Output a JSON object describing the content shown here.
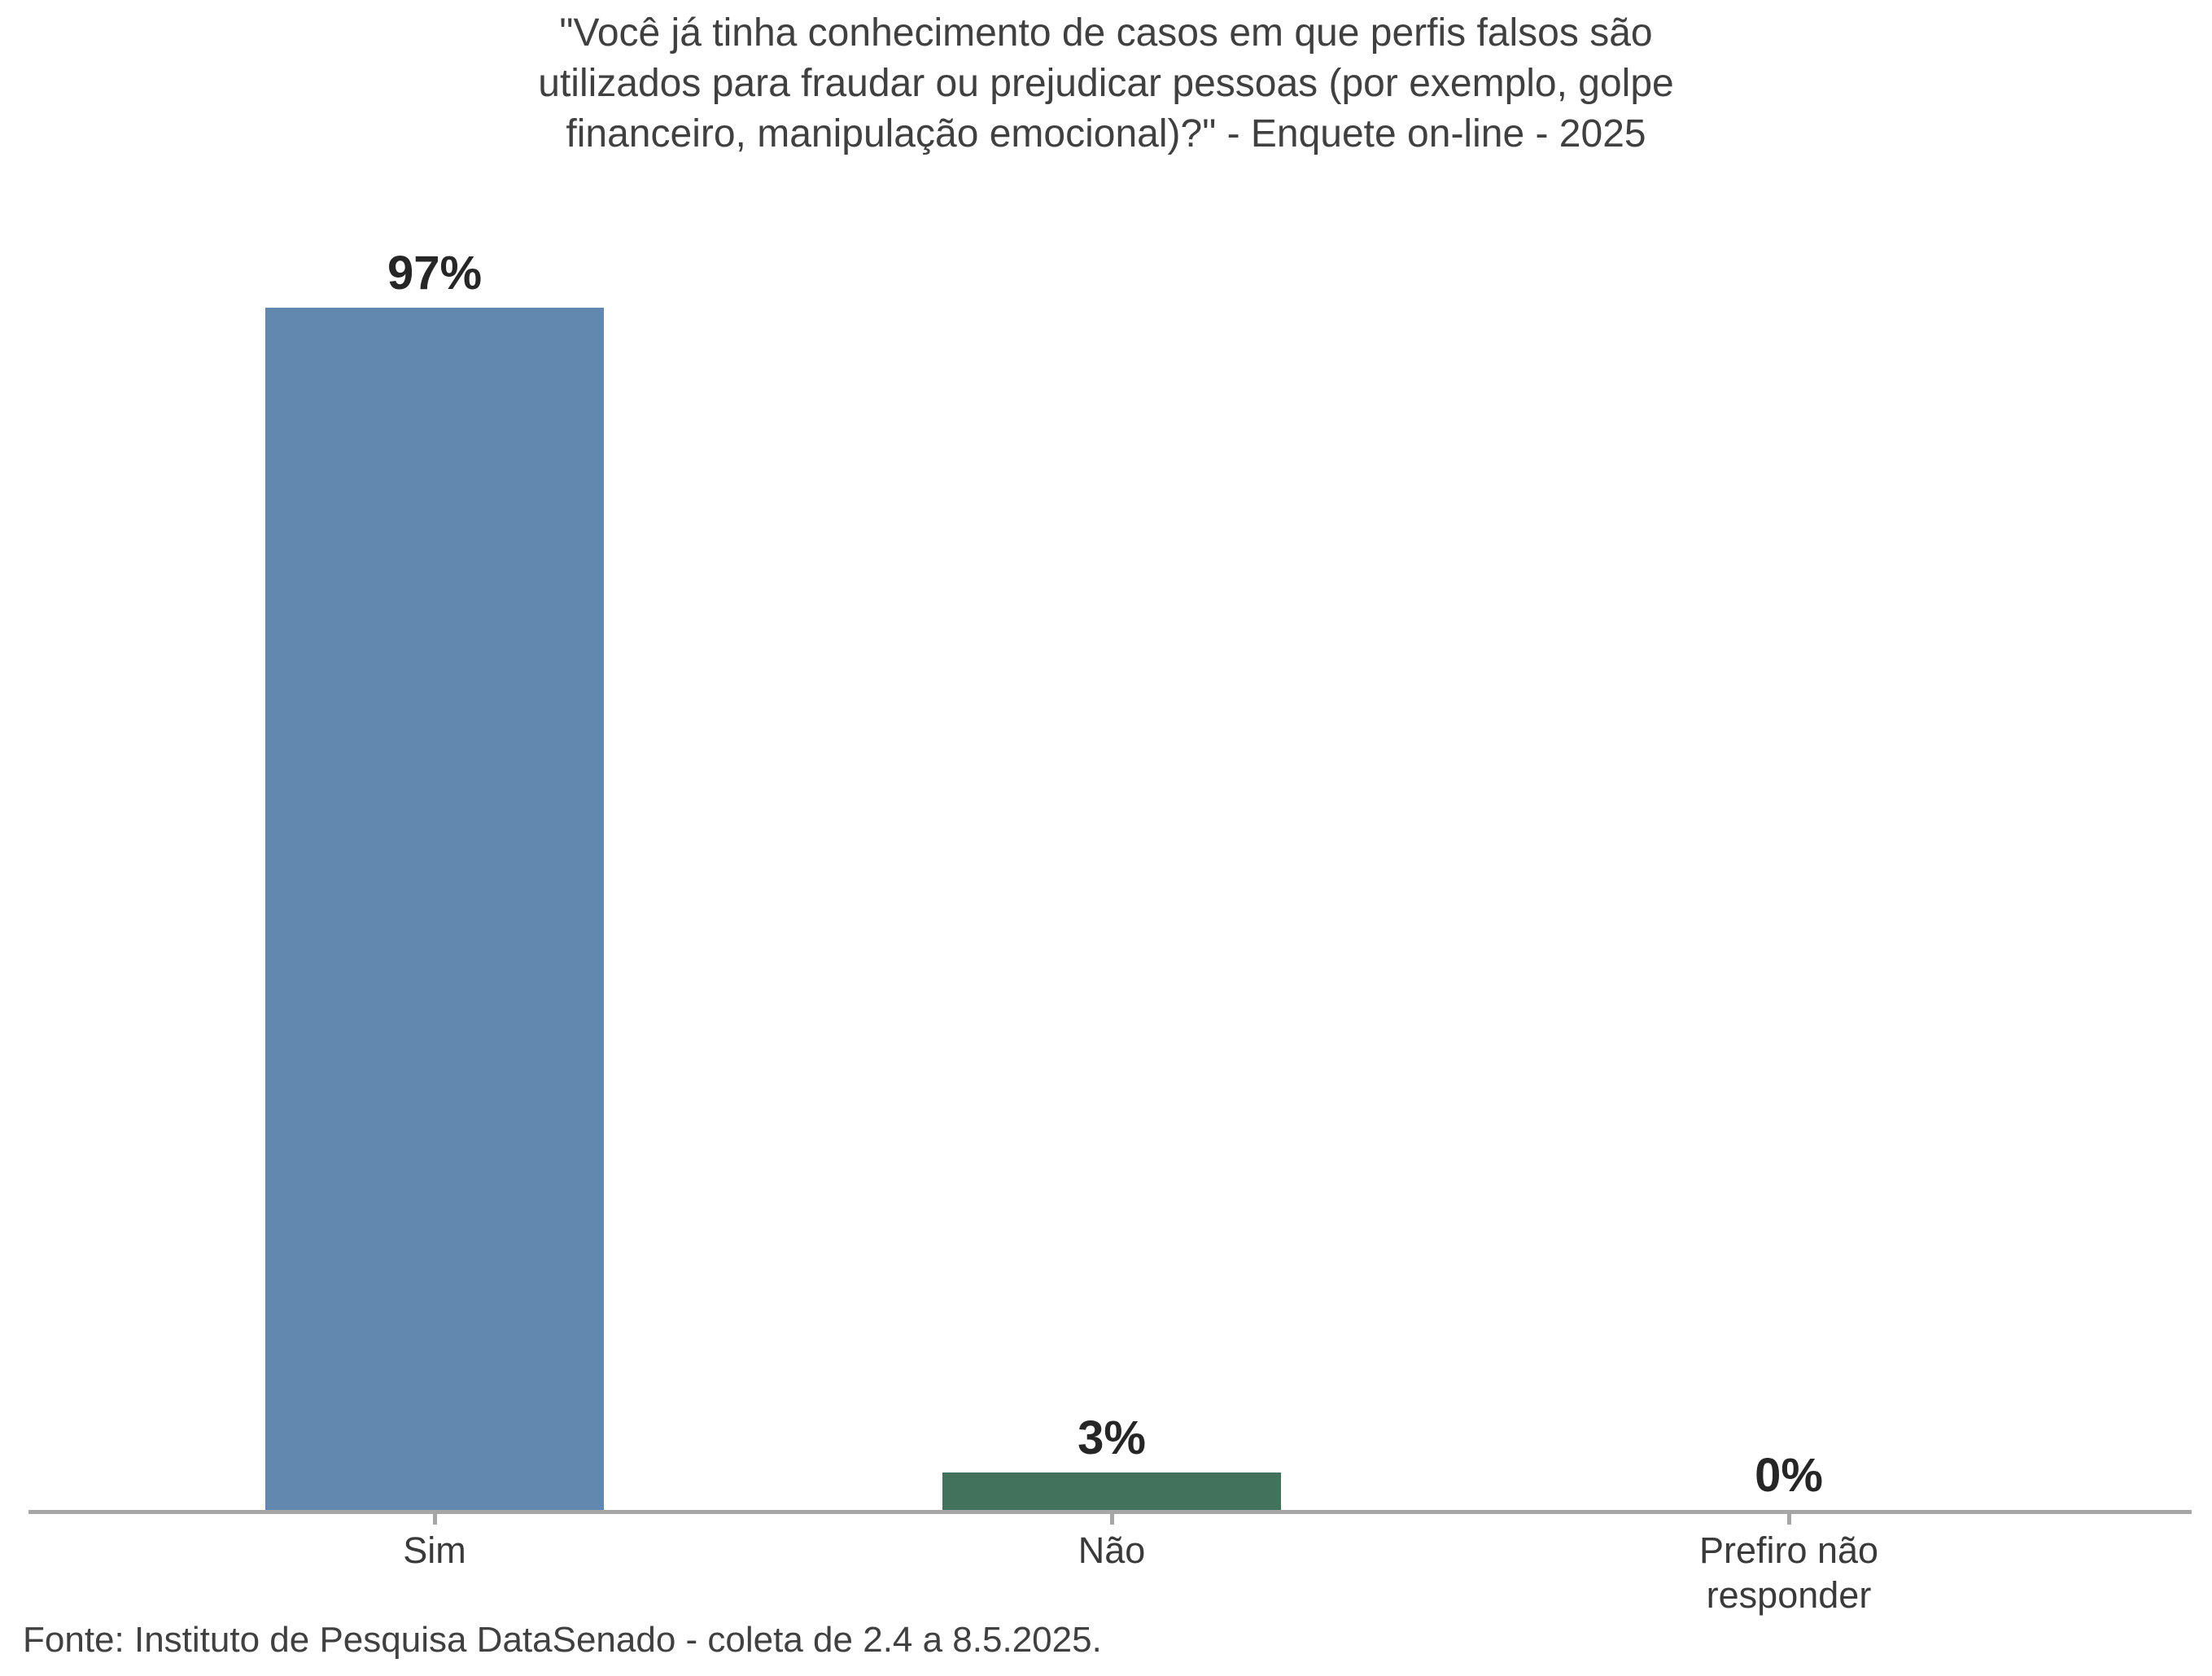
{
  "title_display": "\"Você já tinha conhecimento de casos em que perfis falsos são\nutilizados para fraudar ou prejudicar pessoas (por exemplo, golpe\nfinanceiro, manipulação emocional)?\" - Enquete on-line - 2025",
  "chart_data": {
    "type": "bar",
    "title": "\"Você já tinha conhecimento de casos em que perfis falsos são utilizados para fraudar ou prejudicar pessoas (por exemplo, golpe financeiro, manipulação emocional)?\" - Enquete on-line - 2025",
    "categories": [
      "Sim",
      "Não",
      "Prefiro não responder"
    ],
    "categories_display": [
      "Sim",
      "Não",
      "Prefiro não\nresponder"
    ],
    "values": [
      97,
      3,
      0
    ],
    "value_labels": [
      "97%",
      "3%",
      "0%"
    ],
    "bar_colors": [
      "#6288B0",
      "#43725C",
      "#43725C"
    ],
    "ylabel": "",
    "xlabel": "",
    "ylim": [
      0,
      100
    ],
    "grid": false,
    "legend": false,
    "source": "Fonte: Instituto de Pesquisa DataSenado - coleta de 2.4 a 8.5.2025."
  },
  "colors": {
    "bar_sim": "#6288B0",
    "bar_nao": "#43725C",
    "axis": "#A6A6A6",
    "title_text": "#404040",
    "value_label_text": "#262626",
    "category_text": "#3A3A3A",
    "source_text": "#404040",
    "background": "#FFFFFF"
  }
}
